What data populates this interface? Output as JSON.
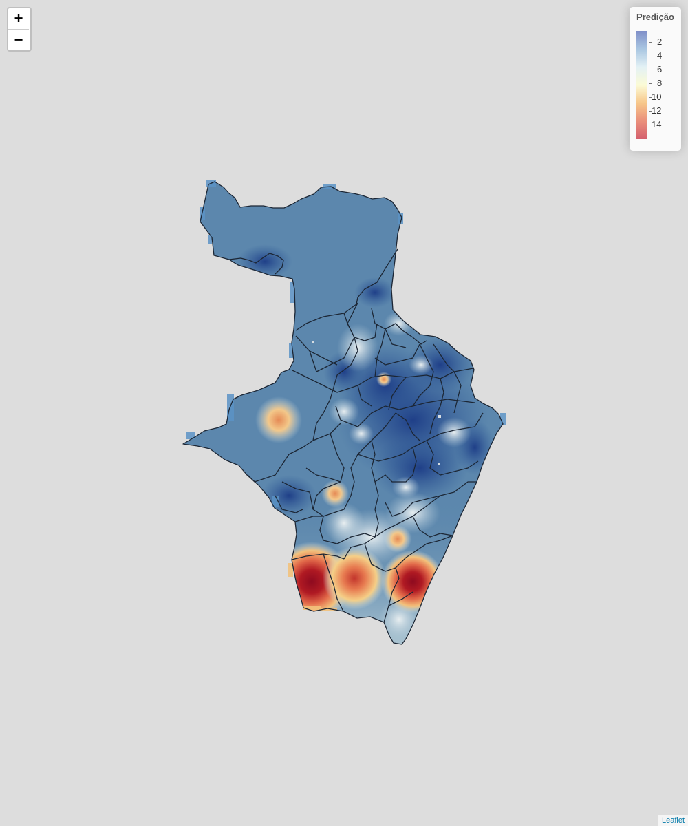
{
  "controls": {
    "zoom_in": "+",
    "zoom_out": "−"
  },
  "legend": {
    "title": "Predição",
    "labels": [
      "2",
      "4",
      "6",
      "8",
      "10",
      "12",
      "14"
    ],
    "colors": [
      "#7f8fc8",
      "#a9c6e1",
      "#e3f1f5",
      "#fbfbd6",
      "#f7c78a",
      "#ea8f7b",
      "#d4606e"
    ]
  },
  "attribution": "Leaflet",
  "map_colors": {
    "base": "#5a86ab",
    "low": "#274a8e",
    "mid": "#c9dbe2",
    "high": "#9a0a1e"
  }
}
